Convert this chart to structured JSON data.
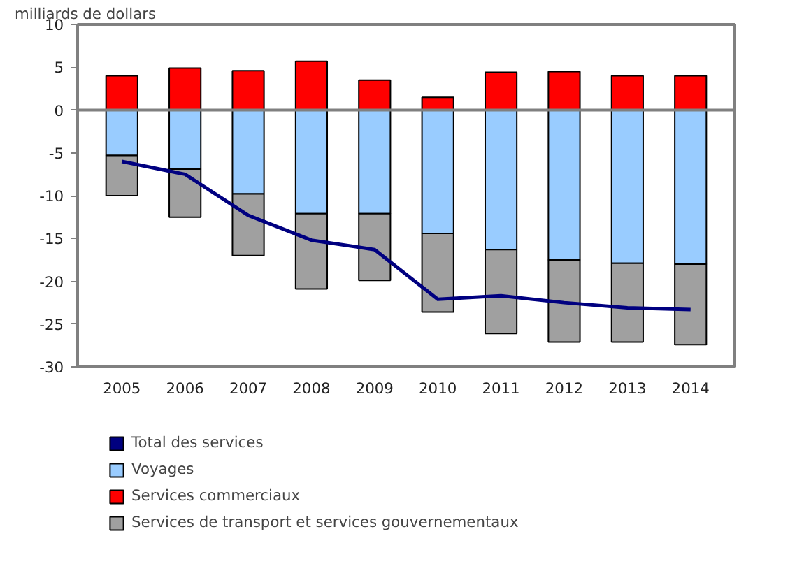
{
  "chart_data": {
    "type": "bar",
    "stacked": true,
    "ylabel": "milliards de dollars",
    "categories": [
      "2005",
      "2006",
      "2007",
      "2008",
      "2009",
      "2010",
      "2011",
      "2012",
      "2013",
      "2014"
    ],
    "series": [
      {
        "name": "Total des services",
        "type": "line",
        "color": "#000080",
        "values": [
          -6.0,
          -7.5,
          -12.3,
          -15.2,
          -16.3,
          -22.1,
          -21.7,
          -22.5,
          -23.1,
          -23.3
        ]
      },
      {
        "name": "Voyages",
        "color": "#99ccff",
        "values": [
          -5.3,
          -6.9,
          -9.8,
          -12.1,
          -12.1,
          -14.4,
          -16.3,
          -17.5,
          -17.9,
          -18.0
        ]
      },
      {
        "name": "Services commerciaux",
        "color": "#ff0000",
        "values": [
          4.0,
          4.9,
          4.6,
          5.7,
          3.5,
          1.5,
          4.4,
          4.5,
          4.0,
          4.0
        ]
      },
      {
        "name": "Services de transport et services gouvernementaux",
        "color": "#a0a0a0",
        "values": [
          -4.7,
          -5.6,
          -7.2,
          -8.8,
          -7.8,
          -9.2,
          -9.8,
          -9.6,
          -9.2,
          -9.4
        ]
      }
    ],
    "ylim": [
      -30,
      10
    ],
    "yticks": [
      -30,
      -25,
      -20,
      -15,
      -10,
      -5,
      0,
      5,
      10
    ],
    "ref_lines": [
      {
        "axis": "y",
        "value": 0,
        "color": "#808080"
      }
    ],
    "grid": false,
    "legend": "bottom",
    "line_style": "solid"
  }
}
